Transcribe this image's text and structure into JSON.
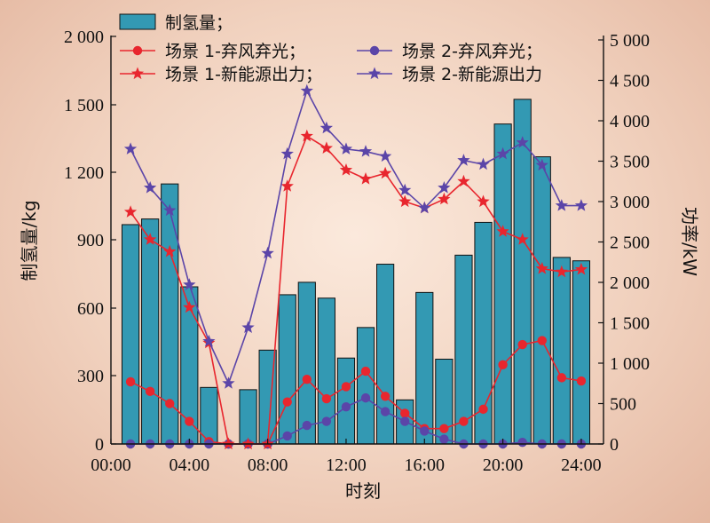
{
  "chart_data": {
    "type": "bar+line",
    "xlabel": "时刻",
    "ylabel_left": "制氢量/kg",
    "ylabel_right": "功率/kW",
    "x_ticks": [
      "00:00",
      "04:00",
      "08:00",
      "12:00",
      "16:00",
      "20:00",
      "24:00"
    ],
    "y_left_ticks": [
      "0",
      "300",
      "600",
      "900",
      "1 200",
      "1 500",
      "2 000"
    ],
    "y_right_ticks": [
      "0",
      "500",
      "1 000",
      "1 500",
      "2 000",
      "2 500",
      "3 000",
      "3 500",
      "4 000",
      "4 500",
      "5 000"
    ],
    "hours": [
      1,
      2,
      3,
      4,
      5,
      6,
      7,
      8,
      9,
      10,
      11,
      12,
      13,
      14,
      15,
      16,
      17,
      18,
      19,
      20,
      21,
      22,
      23,
      24
    ],
    "bar_series": {
      "name": "制氢量；",
      "axis": "left",
      "color": "#3399b3",
      "values": [
        970,
        995,
        1150,
        695,
        250,
        0,
        240,
        415,
        660,
        715,
        645,
        380,
        515,
        795,
        195,
        670,
        375,
        835,
        980,
        1415,
        1540,
        1270,
        825,
        810
      ]
    },
    "line_series": [
      {
        "name": "场景 1-弃风弃光；",
        "axis": "right",
        "marker": "circle",
        "color": "#e8262e",
        "values": [
          770,
          650,
          500,
          280,
          30,
          0,
          0,
          0,
          520,
          800,
          560,
          710,
          900,
          590,
          380,
          190,
          190,
          280,
          430,
          980,
          1230,
          1280,
          820,
          780
        ]
      },
      {
        "name": "场景 2-弃风弃光；",
        "axis": "right",
        "marker": "circle",
        "color": "#5b45a8",
        "values": [
          0,
          0,
          0,
          0,
          0,
          0,
          0,
          0,
          100,
          230,
          280,
          460,
          570,
          400,
          280,
          160,
          60,
          0,
          0,
          0,
          20,
          0,
          0,
          0
        ]
      },
      {
        "name": "场景 1-新能源出力；",
        "axis": "right",
        "marker": "star",
        "color": "#e8262e",
        "values": [
          2870,
          2530,
          2380,
          1690,
          1250,
          0,
          0,
          0,
          3190,
          3810,
          3660,
          3390,
          3280,
          3350,
          3000,
          2920,
          3030,
          3250,
          3000,
          2630,
          2530,
          2170,
          2130,
          2160
        ]
      },
      {
        "name": "场景 2-新能源出力",
        "axis": "right",
        "marker": "star",
        "color": "#5b45a8",
        "values": [
          3650,
          3170,
          2890,
          1970,
          1270,
          750,
          1440,
          2360,
          3590,
          4370,
          3910,
          3650,
          3620,
          3560,
          3140,
          2920,
          3170,
          3510,
          3460,
          3590,
          3730,
          3450,
          2950,
          2950
        ]
      }
    ]
  }
}
